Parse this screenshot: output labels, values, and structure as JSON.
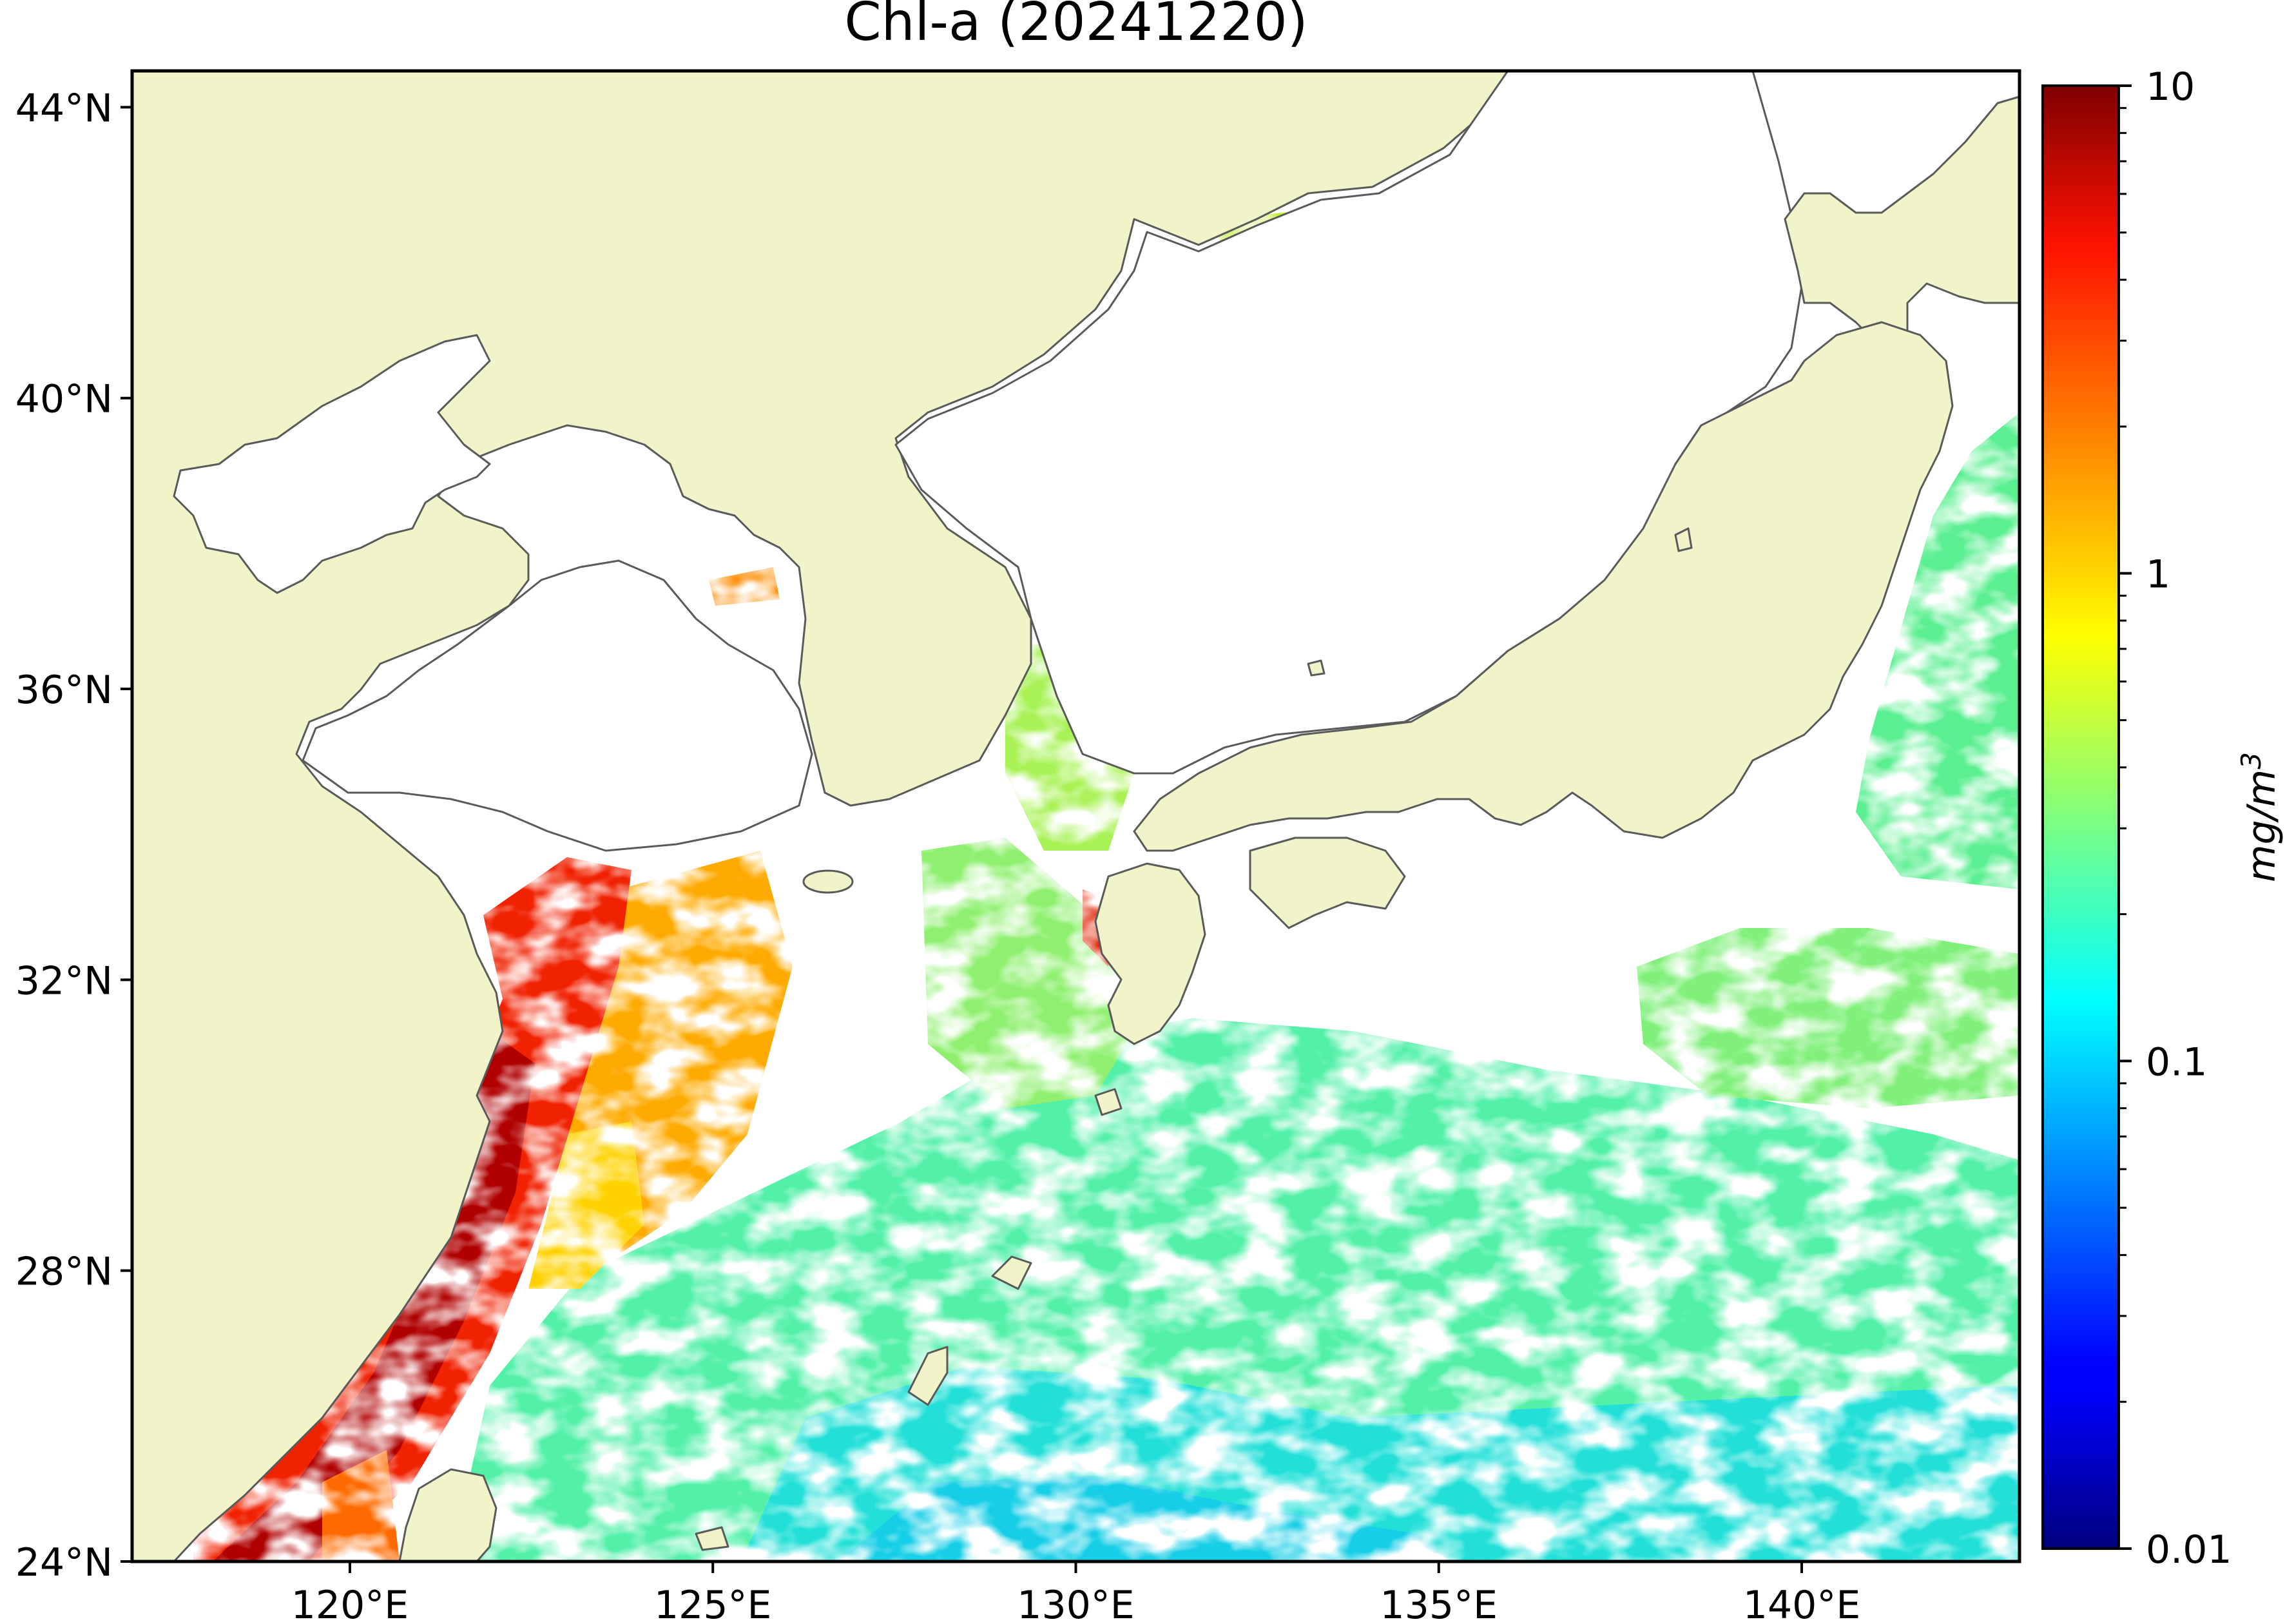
{
  "title": "Chl-a (20241220)",
  "map": {
    "lon_range": [
      117,
      143
    ],
    "lat_range": [
      24,
      44.5
    ],
    "land_color": "#f0f4c8",
    "coast_color": "#5a5a5a",
    "ocean_color": "#ffffff"
  },
  "axes": {
    "x_ticks": [
      {
        "value": 120,
        "label": "120°E"
      },
      {
        "value": 125,
        "label": "125°E"
      },
      {
        "value": 130,
        "label": "130°E"
      },
      {
        "value": 135,
        "label": "135°E"
      },
      {
        "value": 140,
        "label": "140°E"
      }
    ],
    "y_ticks": [
      {
        "value": 24,
        "label": "24°N"
      },
      {
        "value": 28,
        "label": "28°N"
      },
      {
        "value": 32,
        "label": "32°N"
      },
      {
        "value": 36,
        "label": "36°N"
      },
      {
        "value": 40,
        "label": "40°N"
      },
      {
        "value": 44,
        "label": "44°N"
      }
    ]
  },
  "colorbar": {
    "label": "mg/m",
    "label_sup": "3",
    "scale": "log",
    "min": 0.01,
    "max": 10,
    "colormap": "jet",
    "ticks": [
      {
        "value": 10,
        "label": "10"
      },
      {
        "value": 1,
        "label": "1"
      },
      {
        "value": 0.1,
        "label": "0.1"
      },
      {
        "value": 0.01,
        "label": "0.01"
      }
    ]
  }
}
